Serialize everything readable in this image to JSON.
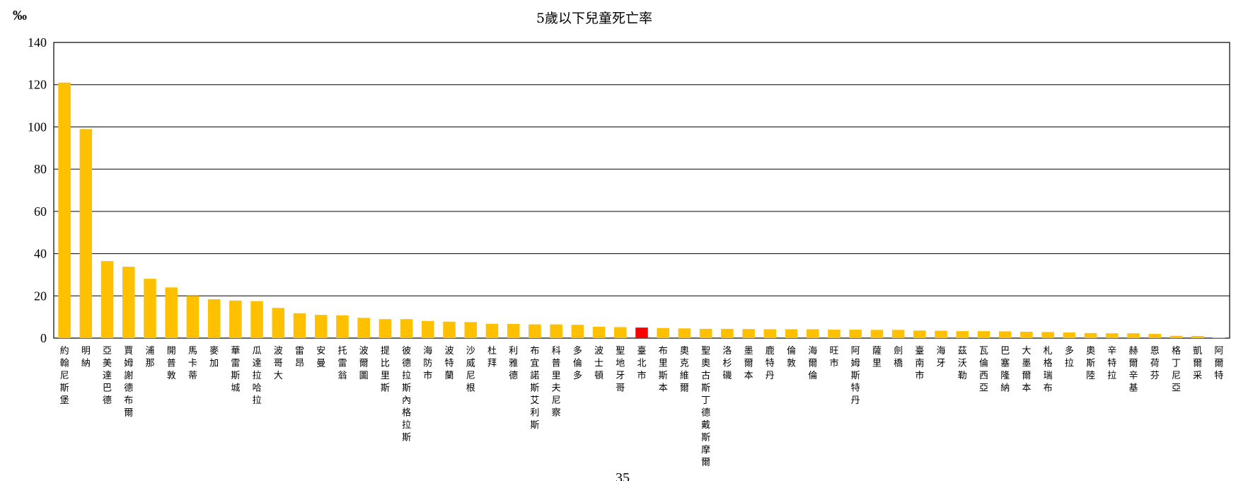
{
  "chart_data": {
    "type": "bar",
    "title": "5歲以下兒童死亡率",
    "ylabel": "‰",
    "ylim": [
      0,
      140
    ],
    "yticks": [
      0,
      20,
      40,
      60,
      80,
      100,
      120,
      140
    ],
    "grid": true,
    "legend": "none",
    "colors": {
      "bar": "#FFC000",
      "highlight": "#FF0000",
      "grid": "#000000"
    },
    "highlight_category": "臺北市",
    "categories": [
      "約翰尼斯堡",
      "明納",
      "亞美達巴德",
      "賈姆謝德布爾",
      "浦那",
      "開普敦",
      "馬卡蒂",
      "麥加",
      "華雷斯城",
      "瓜達拉哈拉",
      "波哥大",
      "雷昂",
      "安曼",
      "托雷翁",
      "波爾圖",
      "提比里斯",
      "彼德拉斯內格拉斯",
      "海防市",
      "波特蘭",
      "沙威尼根",
      "杜拜",
      "利雅德",
      "布宜諾斯艾利斯",
      "科普里夫尼察",
      "多倫多",
      "波士頓",
      "聖地牙哥",
      "臺北市",
      "布里斯本",
      "奧克維爾",
      "聖奧古斯丁德戴斯摩爾",
      "洛杉磯",
      "墨爾本",
      "鹿特丹",
      "倫敦",
      "海爾倫",
      "旺市",
      "阿姆斯特丹",
      "薩里",
      "劍橋",
      "臺南市",
      "海牙",
      "茲沃勒",
      "瓦倫西亞",
      "巴塞隆納",
      "大墨爾本",
      "札格瑞布",
      "多拉",
      "奧斯陸",
      "辛特拉",
      "赫爾辛基",
      "恩荷芬",
      "格丁尼亞",
      "凱爾采",
      "阿爾特"
    ],
    "values": [
      121,
      99,
      36.5,
      33.8,
      28.1,
      24,
      20,
      18.4,
      17.8,
      17.5,
      14.3,
      11.8,
      11,
      10.8,
      9.6,
      9,
      9,
      8.1,
      7.8,
      7.6,
      6.8,
      6.7,
      6.5,
      6.5,
      6.3,
      5.4,
      5.2,
      5,
      4.8,
      4.6,
      4.4,
      4.4,
      4.3,
      4.2,
      4.2,
      4.2,
      4,
      4,
      3.9,
      3.9,
      3.6,
      3.5,
      3.3,
      3.3,
      3.2,
      3,
      2.9,
      2.7,
      2.4,
      2.3,
      2.3,
      2,
      1.1,
      1,
      0.3
    ],
    "page_number": "35"
  }
}
